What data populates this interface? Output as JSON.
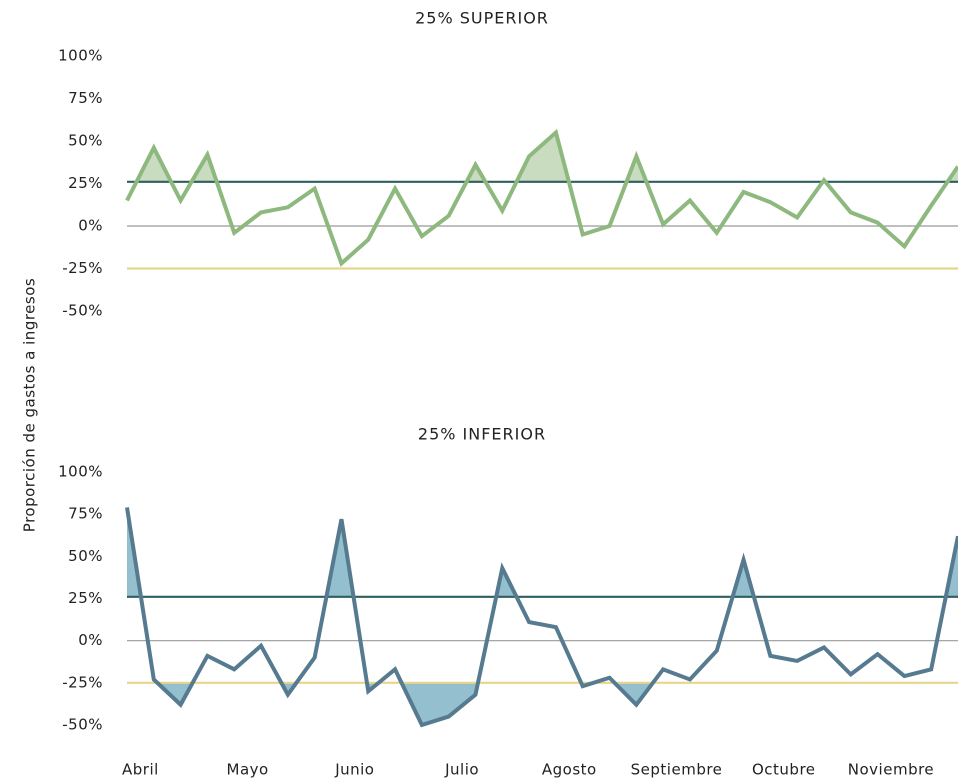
{
  "chart_data": [
    {
      "type": "line",
      "title": "25% SUPERIOR",
      "ylabel": "Proporción de gastos a ingresos",
      "color": "#8db87e",
      "fill": "#c9dcc0",
      "values": [
        15,
        46,
        15,
        42,
        -4,
        8,
        11,
        22,
        -22,
        -8,
        22,
        -6,
        6,
        36,
        9,
        41,
        55,
        -5,
        0,
        41,
        1,
        15,
        -4,
        20,
        14,
        5,
        27,
        8,
        2,
        -12,
        12,
        35
      ],
      "ylim": [
        -50,
        100
      ],
      "yticks": [
        {
          "value": 100,
          "label": "100%"
        },
        {
          "value": 75,
          "label": "75%"
        },
        {
          "value": 50,
          "label": "50%"
        },
        {
          "value": 25,
          "label": "25%"
        },
        {
          "value": 0,
          "label": "0%"
        },
        {
          "value": -25,
          "label": "-25%"
        },
        {
          "value": -50,
          "label": "-50%"
        }
      ],
      "reference_lines": [
        {
          "value": 26,
          "color": "#2f5f5f"
        },
        {
          "value": -25,
          "color": "#e8d58a"
        }
      ],
      "zero_line_color": "#999999"
    },
    {
      "type": "line",
      "title": "25% INFERIOR",
      "color": "#567a8f",
      "fill": "#93bfcf",
      "categories": [
        "Abril",
        null,
        null,
        null,
        "Mayo",
        null,
        null,
        null,
        "Junio",
        null,
        null,
        null,
        "Julio",
        null,
        null,
        null,
        "Agosto",
        null,
        null,
        null,
        "Septiembre",
        null,
        null,
        null,
        "Octubre",
        null,
        null,
        null,
        "Noviembre",
        null,
        null,
        null
      ],
      "values": [
        79,
        -23,
        -38,
        -9,
        -17,
        -3,
        -32,
        -10,
        72,
        -30,
        -17,
        -50,
        -45,
        -32,
        43,
        11,
        8,
        -27,
        -22,
        -38,
        -17,
        -23,
        -6,
        48,
        -9,
        -12,
        -4,
        -20,
        -8,
        -21,
        -17,
        62
      ],
      "ylim": [
        -50,
        100
      ],
      "yticks": [
        {
          "value": 100,
          "label": "100%"
        },
        {
          "value": 75,
          "label": "75%"
        },
        {
          "value": 50,
          "label": "50%"
        },
        {
          "value": 25,
          "label": "25%"
        },
        {
          "value": 0,
          "label": "0%"
        },
        {
          "value": -25,
          "label": "-25%"
        },
        {
          "value": -50,
          "label": "-50%"
        }
      ],
      "reference_lines": [
        {
          "value": 26,
          "color": "#2f5f5f"
        },
        {
          "value": -25,
          "color": "#e8d58a"
        }
      ],
      "zero_line_color": "#999999"
    }
  ]
}
